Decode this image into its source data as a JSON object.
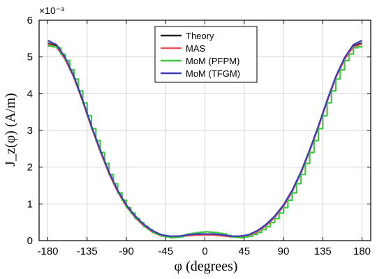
{
  "chart_data": {
    "type": "line",
    "xlabel": "φ (degrees)",
    "ylabel": "J_z(φ) (A/m)",
    "y_exponent_label": "×10⁻³",
    "xlim": [
      -190,
      190
    ],
    "ylim": [
      0,
      6
    ],
    "xticks": [
      -180,
      -135,
      -90,
      -45,
      0,
      45,
      90,
      135,
      180
    ],
    "yticks": [
      0,
      1,
      2,
      3,
      4,
      5,
      6
    ],
    "grid": true,
    "legend_position": "top-center",
    "series": [
      {
        "name": "Theory",
        "color": "#222222",
        "x": [
          -180,
          -170,
          -160,
          -150,
          -140,
          -130,
          -120,
          -110,
          -100,
          -90,
          -80,
          -70,
          -60,
          -50,
          -40,
          -30,
          -20,
          -10,
          0,
          10,
          20,
          30,
          40,
          50,
          60,
          70,
          80,
          90,
          100,
          110,
          120,
          130,
          140,
          150,
          160,
          170,
          180
        ],
        "y": [
          5.38,
          5.3,
          4.95,
          4.45,
          3.8,
          3.1,
          2.45,
          1.85,
          1.35,
          0.95,
          0.65,
          0.42,
          0.25,
          0.15,
          0.12,
          0.12,
          0.14,
          0.16,
          0.17,
          0.16,
          0.14,
          0.12,
          0.12,
          0.15,
          0.25,
          0.42,
          0.65,
          0.95,
          1.35,
          1.85,
          2.45,
          3.1,
          3.8,
          4.45,
          4.95,
          5.3,
          5.38
        ]
      },
      {
        "name": "MAS",
        "color": "#e8555a",
        "x": [
          -180,
          -170,
          -160,
          -150,
          -140,
          -130,
          -120,
          -110,
          -100,
          -90,
          -80,
          -70,
          -60,
          -50,
          -40,
          -30,
          -20,
          -10,
          0,
          10,
          20,
          30,
          40,
          50,
          60,
          70,
          80,
          90,
          100,
          110,
          120,
          130,
          140,
          150,
          160,
          170,
          180
        ],
        "y": [
          5.35,
          5.27,
          4.93,
          4.43,
          3.78,
          3.08,
          2.43,
          1.83,
          1.33,
          0.93,
          0.63,
          0.4,
          0.23,
          0.13,
          0.1,
          0.1,
          0.13,
          0.15,
          0.16,
          0.15,
          0.13,
          0.1,
          0.1,
          0.13,
          0.23,
          0.4,
          0.63,
          0.93,
          1.33,
          1.83,
          2.43,
          3.08,
          3.78,
          4.43,
          4.93,
          5.27,
          5.35
        ]
      },
      {
        "name": "MoM (PFPM)",
        "color": "#3ec83e",
        "x": [
          -180,
          -170,
          -160,
          -150,
          -140,
          -130,
          -120,
          -110,
          -100,
          -90,
          -80,
          -70,
          -60,
          -50,
          -40,
          -30,
          -20,
          -10,
          0,
          10,
          20,
          30,
          40,
          50,
          60,
          70,
          80,
          90,
          100,
          110,
          120,
          130,
          140,
          150,
          160,
          170,
          180
        ],
        "y": [
          5.3,
          5.25,
          4.9,
          4.4,
          3.75,
          3.05,
          2.4,
          1.8,
          1.3,
          0.9,
          0.6,
          0.38,
          0.22,
          0.12,
          0.08,
          0.1,
          0.18,
          0.22,
          0.24,
          0.22,
          0.18,
          0.1,
          0.08,
          0.12,
          0.22,
          0.38,
          0.6,
          0.9,
          1.3,
          1.8,
          2.4,
          3.05,
          3.75,
          4.4,
          4.9,
          5.25,
          5.3
        ],
        "step_width": 5
      },
      {
        "name": "MoM (TFGM)",
        "color": "#3a3ab8",
        "x": [
          -180,
          -170,
          -160,
          -150,
          -140,
          -130,
          -120,
          -110,
          -100,
          -90,
          -80,
          -70,
          -60,
          -50,
          -40,
          -30,
          -20,
          -10,
          0,
          10,
          20,
          30,
          40,
          50,
          60,
          70,
          80,
          90,
          100,
          110,
          120,
          130,
          140,
          150,
          160,
          170,
          180
        ],
        "y": [
          5.45,
          5.33,
          4.98,
          4.47,
          3.82,
          3.12,
          2.47,
          1.87,
          1.37,
          0.97,
          0.67,
          0.44,
          0.27,
          0.16,
          0.12,
          0.12,
          0.16,
          0.18,
          0.18,
          0.18,
          0.16,
          0.12,
          0.12,
          0.16,
          0.27,
          0.44,
          0.67,
          0.97,
          1.37,
          1.87,
          2.47,
          3.12,
          3.82,
          4.47,
          4.98,
          5.33,
          5.45
        ]
      }
    ]
  }
}
